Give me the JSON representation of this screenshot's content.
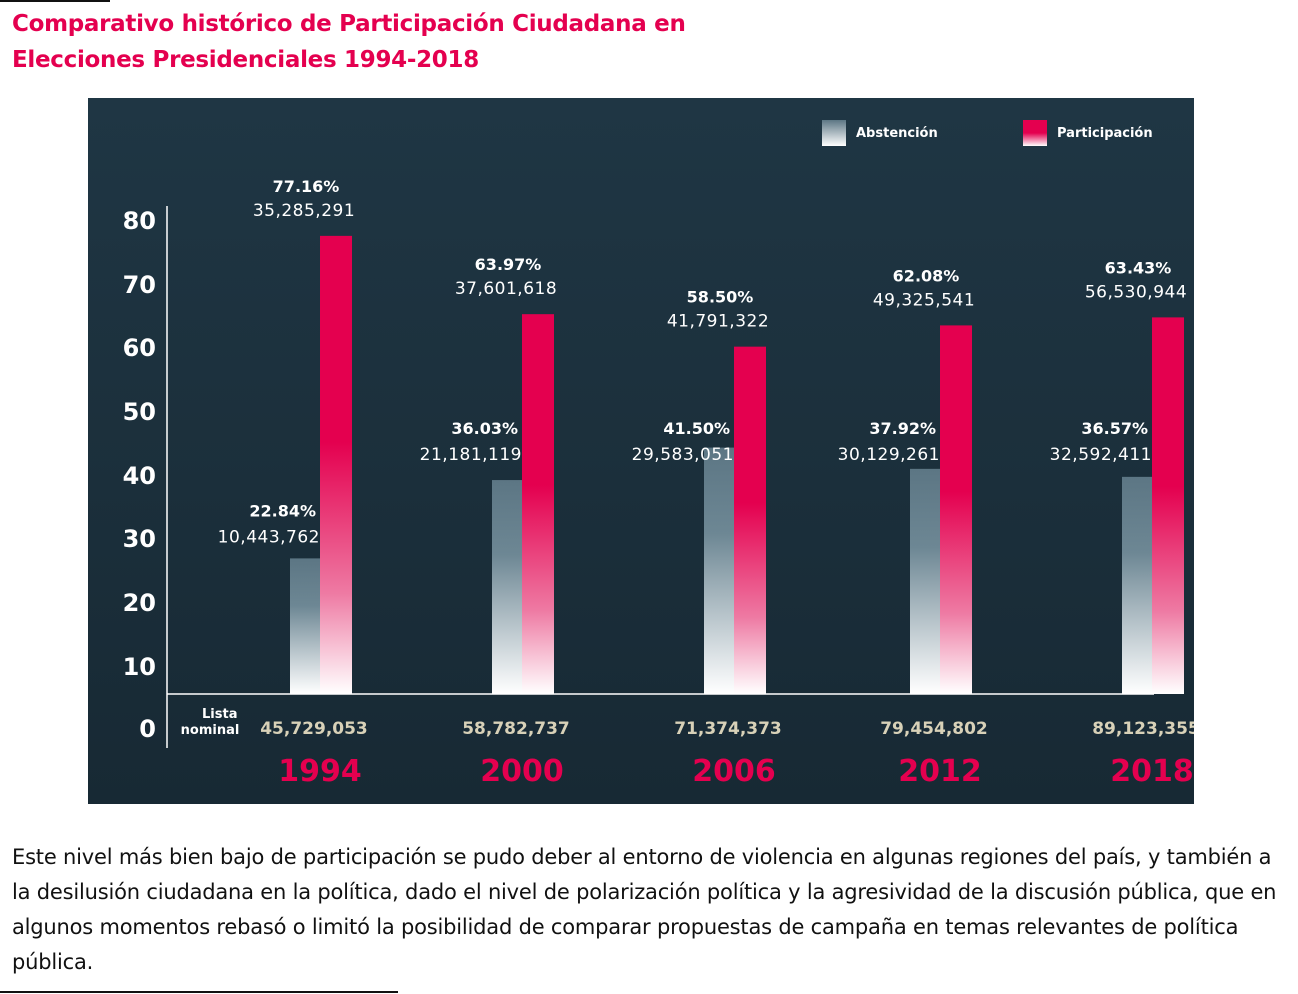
{
  "title": "Comparativo histórico de Participación Ciudadana en Elecciones Presidenciales 1994-2018",
  "paragraph": "Este nivel más bien bajo de participación se pudo deber al entorno de violencia en algunas regiones del país, y también a la desilusión ciudadana en la política, dado el nivel de polarización política y la agresividad de la discusión pública, que en algunos momentos rebasó o limitó la posibilidad de comparar propuestas de campaña en temas relevantes de política pública.",
  "colors": {
    "participacion": "#e4004f",
    "abstencion": "#5c7684",
    "panel": "#1b2f3b",
    "year": "#e4004f"
  },
  "chart_data": {
    "type": "bar",
    "legend": [
      "Abstención",
      "Participación"
    ],
    "legend_position": "top-right",
    "ylim": [
      0,
      80
    ],
    "yticks": [
      "80",
      "70",
      "60",
      "50",
      "40",
      "30",
      "20",
      "10",
      "0"
    ],
    "nominal_label": "Lista nominal",
    "categories": [
      "1994",
      "2000",
      "2006",
      "2012",
      "2018"
    ],
    "series": [
      {
        "name": "Abstención",
        "values": [
          22.84,
          36.03,
          41.5,
          37.92,
          36.57
        ],
        "pct_labels": [
          "22.84%",
          "36.03%",
          "41.50%",
          "37.92%",
          "36.57%"
        ],
        "count_labels": [
          "10,443,762",
          "21,181,119",
          "29,583,051",
          "30,129,261",
          "32,592,411"
        ]
      },
      {
        "name": "Participación",
        "values": [
          77.16,
          63.97,
          58.5,
          62.08,
          63.43
        ],
        "pct_labels": [
          "77.16%",
          "63.97%",
          "58.50%",
          "62.08%",
          "63.43%"
        ],
        "count_labels": [
          "35,285,291",
          "37,601,618",
          "41,791,322",
          "49,325,541",
          "56,530,944"
        ]
      }
    ],
    "lista_nominal": [
      "45,729,053",
      "58,782,737",
      "71,374,373",
      "79,454,802",
      "89,123,355"
    ]
  }
}
